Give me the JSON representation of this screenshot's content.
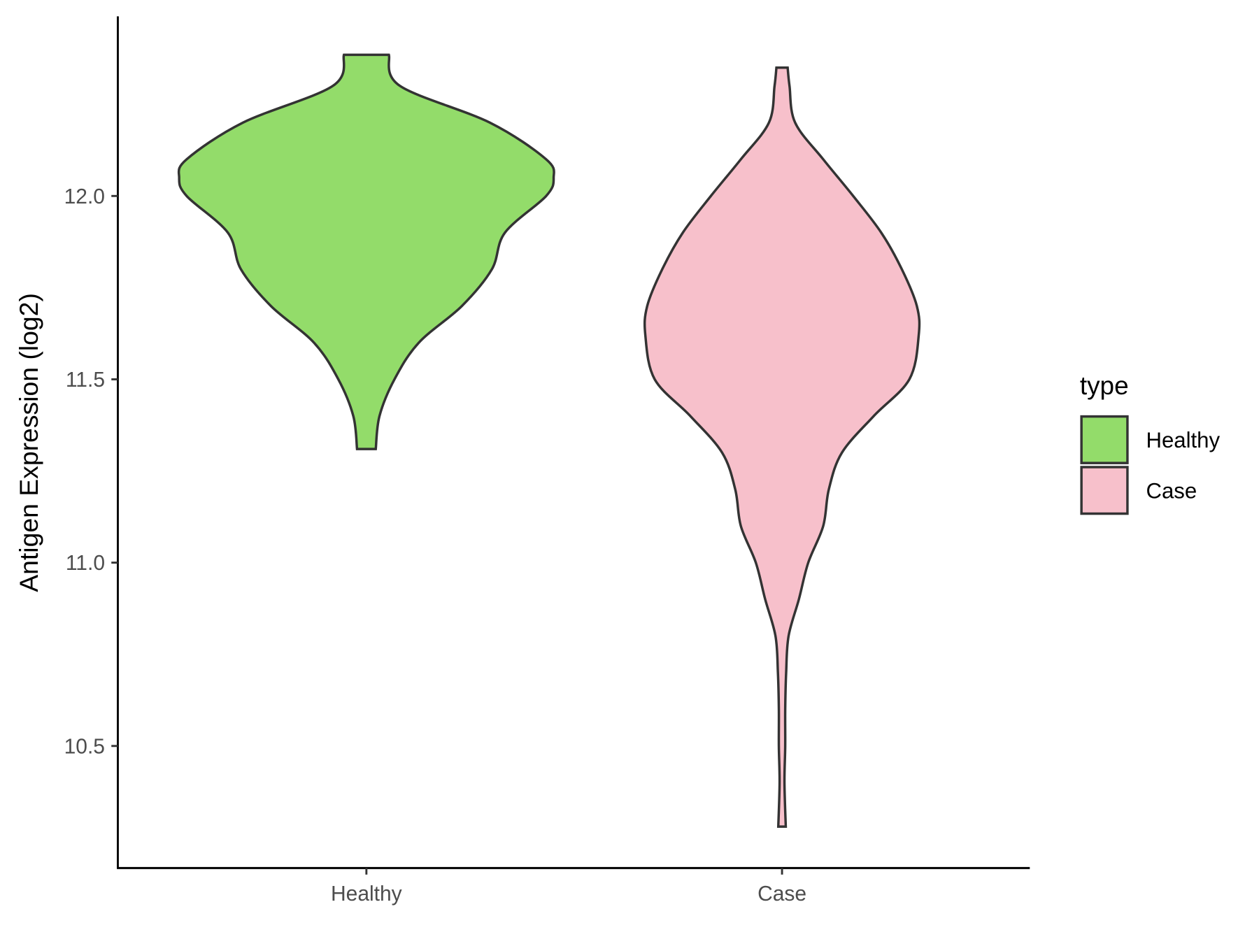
{
  "chart_data": {
    "type": "violin",
    "title": "",
    "xlabel": "",
    "ylabel": "Antigen Expression (log2)",
    "categories": [
      "Healthy",
      "Case"
    ],
    "ylim": [
      10.15,
      12.47
    ],
    "yticks": [
      10.5,
      11.0,
      11.5,
      12.0
    ],
    "ytick_labels": [
      "10.5",
      "11.0",
      "11.5",
      "12.0"
    ],
    "legend": {
      "title": "type",
      "position": "right",
      "entries": [
        "Healthy",
        "Case"
      ]
    },
    "colors": {
      "Healthy": "#93DC6A",
      "Case": "#F7C0CB",
      "outline": "#333333"
    },
    "series": [
      {
        "name": "Healthy",
        "density_profile": [
          [
            12.385,
            0.12
          ],
          [
            12.3,
            0.18
          ],
          [
            12.2,
            0.66
          ],
          [
            12.1,
            0.96
          ],
          [
            12.05,
            1.0
          ],
          [
            12.0,
            0.96
          ],
          [
            11.9,
            0.74
          ],
          [
            11.8,
            0.67
          ],
          [
            11.7,
            0.51
          ],
          [
            11.6,
            0.28
          ],
          [
            11.5,
            0.15
          ],
          [
            11.4,
            0.07
          ],
          [
            11.31,
            0.05
          ]
        ]
      },
      {
        "name": "Case",
        "density_profile": [
          [
            12.35,
            0.03
          ],
          [
            12.3,
            0.04
          ],
          [
            12.2,
            0.07
          ],
          [
            12.1,
            0.22
          ],
          [
            12.0,
            0.38
          ],
          [
            11.9,
            0.53
          ],
          [
            11.8,
            0.64
          ],
          [
            11.7,
            0.72
          ],
          [
            11.62,
            0.73
          ],
          [
            11.5,
            0.68
          ],
          [
            11.4,
            0.49
          ],
          [
            11.3,
            0.32
          ],
          [
            11.2,
            0.25
          ],
          [
            11.1,
            0.22
          ],
          [
            11.0,
            0.14
          ],
          [
            10.9,
            0.09
          ],
          [
            10.8,
            0.035
          ],
          [
            10.7,
            0.022
          ],
          [
            10.6,
            0.017
          ],
          [
            10.5,
            0.017
          ],
          [
            10.4,
            0.013
          ],
          [
            10.28,
            0.02
          ]
        ]
      }
    ]
  }
}
